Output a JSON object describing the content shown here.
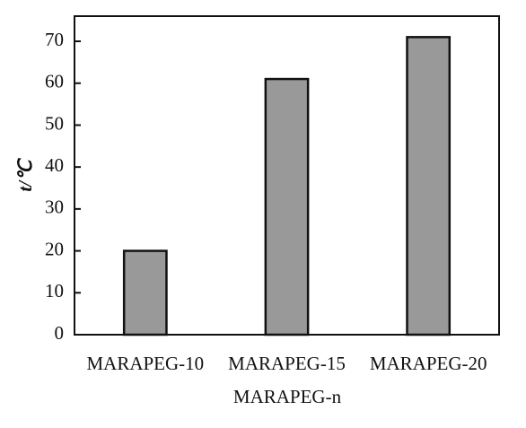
{
  "chart_data": {
    "type": "bar",
    "categories": [
      "MARAPEG-10",
      "MARAPEG-15",
      "MARAPEG-20"
    ],
    "values": [
      20,
      61,
      71
    ],
    "color": "#999999",
    "ylim": [
      0,
      76
    ],
    "yticks": [
      0,
      10,
      20,
      30,
      40,
      50,
      60,
      70
    ],
    "y_label": "t/℃",
    "x_label": "MARAPEG-n"
  }
}
